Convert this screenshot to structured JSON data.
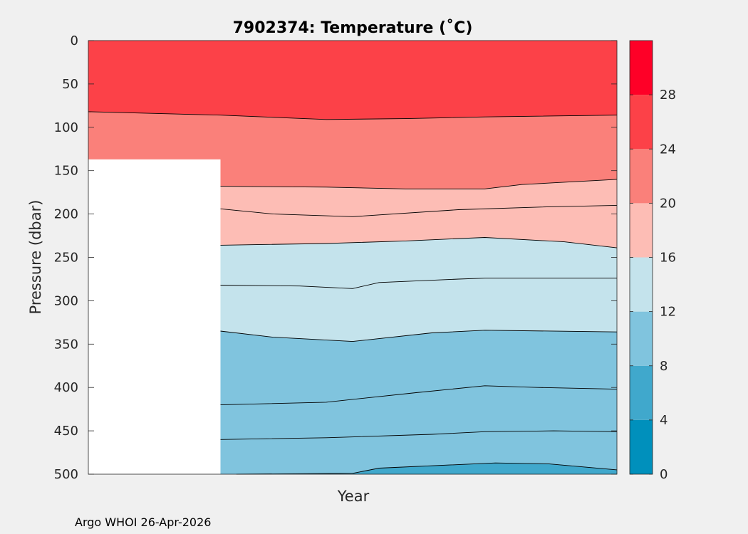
{
  "chart_data": {
    "type": "contour",
    "title": "7902374:  Temperature (˚C)",
    "xlabel": "Year",
    "ylabel": "Pressure (dbar)",
    "ylim": [
      0,
      500
    ],
    "y_reversed": true,
    "y_ticks": [
      "0",
      "50",
      "100",
      "150",
      "200",
      "250",
      "300",
      "350",
      "400",
      "450",
      "500"
    ],
    "x_range": [
      0,
      1
    ],
    "x_ticks": [],
    "missing_region": {
      "x": [
        0,
        0.25
      ],
      "pressure_from": 137,
      "pressure_to": 500
    },
    "contour_lines": [
      {
        "value": 24,
        "x": [
          0,
          0.25,
          0.45,
          0.6,
          0.75,
          1.0
        ],
        "pressure": [
          82,
          86,
          91,
          90,
          88,
          86
        ]
      },
      {
        "value": 20,
        "x": [
          0.25,
          0.45,
          0.6,
          0.75,
          0.82,
          1.0
        ],
        "pressure": [
          168,
          169,
          171,
          171,
          166,
          160
        ]
      },
      {
        "value": 18,
        "x": [
          0.25,
          0.35,
          0.5,
          0.7,
          0.85,
          1.0
        ],
        "pressure": [
          194,
          200,
          203,
          195,
          192,
          190
        ]
      },
      {
        "value": 16,
        "x": [
          0.25,
          0.45,
          0.6,
          0.75,
          0.9,
          1.0
        ],
        "pressure": [
          236,
          234,
          231,
          227,
          232,
          239
        ]
      },
      {
        "value": 14,
        "x": [
          0.25,
          0.4,
          0.5,
          0.55,
          0.7,
          0.75,
          1.0
        ],
        "pressure": [
          282,
          283,
          286,
          279,
          275,
          274,
          274
        ]
      },
      {
        "value": 12,
        "x": [
          0.25,
          0.35,
          0.5,
          0.65,
          0.75,
          1.0
        ],
        "pressure": [
          335,
          342,
          347,
          337,
          334,
          336
        ]
      },
      {
        "value": 10,
        "x": [
          0.25,
          0.45,
          0.62,
          0.75,
          0.85,
          1.0
        ],
        "pressure": [
          420,
          417,
          406,
          398,
          400,
          402
        ]
      },
      {
        "value": 9,
        "x": [
          0.25,
          0.45,
          0.65,
          0.75,
          0.88,
          1.0
        ],
        "pressure": [
          460,
          458,
          454,
          451,
          450,
          451
        ]
      },
      {
        "value": 8,
        "x": [
          0.28,
          0.5,
          0.55,
          0.77,
          0.87,
          1.0
        ],
        "pressure": [
          500,
          499,
          493,
          487,
          488,
          495
        ]
      }
    ],
    "colorbar": {
      "levels": [
        0,
        4,
        8,
        12,
        16,
        20,
        24,
        28,
        32
      ],
      "tick_labels": [
        "0",
        "4",
        "8",
        "12",
        "16",
        "20",
        "24",
        "28"
      ],
      "colors": [
        "#0090bc",
        "#40a8cc",
        "#80c4de",
        "#c4e3ec",
        "#fdbdb5",
        "#fa807a",
        "#fc4148",
        "#fe0027"
      ]
    },
    "band_colors": {
      "warm_surface": "#fc4148",
      "warm_upper": "#fa807a",
      "warm_lower": "#fdbdb5",
      "cool_upper": "#c4e3ec",
      "cool_lower": "#80c4de",
      "cold": "#40a8cc"
    }
  },
  "footer": "Argo WHOI 26-Apr-2026"
}
